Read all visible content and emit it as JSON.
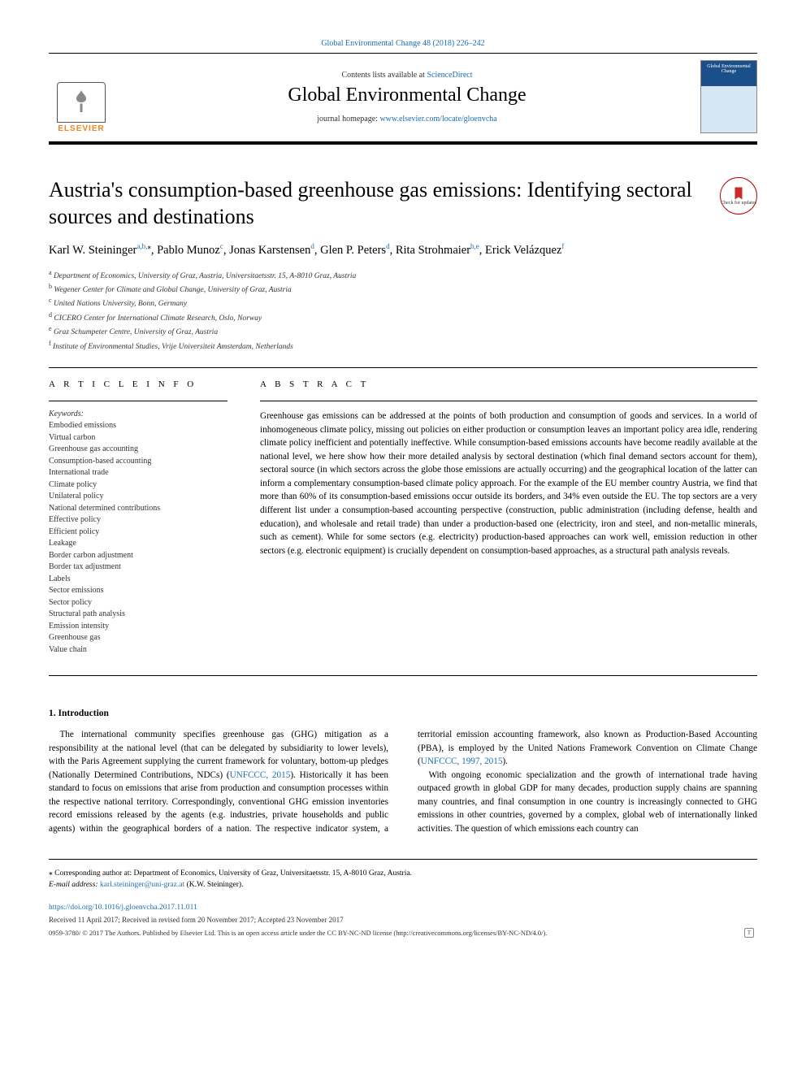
{
  "header": {
    "citation": "Global Environmental Change 48 (2018) 226–242",
    "contents_prefix": "Contents lists available at ",
    "contents_link": "ScienceDirect",
    "journal": "Global Environmental Change",
    "homepage_prefix": "journal homepage: ",
    "homepage_url": "www.elsevier.com/locate/gloenvcha",
    "elsevier_label": "ELSEVIER",
    "cover_label": "Global Environmental Change"
  },
  "title": "Austria's consumption-based greenhouse gas emissions: Identifying sectoral sources and destinations",
  "updates_badge": "Check for updates",
  "authors_html_parts": {
    "a1_name": "Karl W. Steininger",
    "a1_sup": "a,b,",
    "a1_star": "⁎",
    "a2_name": "Pablo Munoz",
    "a2_sup": "c",
    "a3_name": "Jonas Karstensen",
    "a3_sup": "d",
    "a4_name": "Glen P. Peters",
    "a4_sup": "d",
    "a5_name": "Rita Strohmaier",
    "a5_sup": "b,e",
    "a6_name": "Erick Velázquez",
    "a6_sup": "f"
  },
  "affiliations": [
    {
      "sup": "a",
      "text": "Department of Economics, University of Graz, Austria, Universitaetsstr. 15, A-8010 Graz, Austria"
    },
    {
      "sup": "b",
      "text": "Wegener Center for Climate and Global Change, University of Graz, Austria"
    },
    {
      "sup": "c",
      "text": "United Nations University, Bonn, Germany"
    },
    {
      "sup": "d",
      "text": "CICERO Center for International Climate Research, Oslo, Norway"
    },
    {
      "sup": "e",
      "text": "Graz Schumpeter Centre, University of Graz, Austria"
    },
    {
      "sup": "f",
      "text": "Institute of Environmental Studies, Vrije Universiteit Amsterdam, Netherlands"
    }
  ],
  "article_info_heading": "A R T I C L E  I N F O",
  "keywords_label": "Keywords:",
  "keywords": [
    "Embodied emissions",
    "Virtual carbon",
    "Greenhouse gas accounting",
    "Consumption-based accounting",
    "International trade",
    "Climate policy",
    "Unilateral policy",
    "National determined contributions",
    "Effective policy",
    "Efficient policy",
    "Leakage",
    "Border carbon adjustment",
    "Border tax adjustment",
    "Labels",
    "Sector emissions",
    "Sector policy",
    "Structural path analysis",
    "Emission intensity",
    "Greenhouse gas",
    "Value chain"
  ],
  "abstract_heading": "A B S T R A C T",
  "abstract": "Greenhouse gas emissions can be addressed at the points of both production and consumption of goods and services. In a world of inhomogeneous climate policy, missing out policies on either production or consumption leaves an important policy area idle, rendering climate policy inefficient and potentially ineffective. While consumption-based emissions accounts have become readily available at the national level, we here show how their more detailed analysis by sectoral destination (which final demand sectors account for them), sectoral source (in which sectors across the globe those emissions are actually occurring) and the geographical location of the latter can inform a complementary consumption-based climate policy approach. For the example of the EU member country Austria, we find that more than 60% of its consumption-based emissions occur outside its borders, and 34% even outside the EU. The top sectors are a very different list under a consumption-based accounting perspective (construction, public administration (including defense, health and education), and wholesale and retail trade) than under a production-based one (electricity, iron and steel, and non-metallic minerals, such as cement). While for some sectors (e.g. electricity) production-based approaches can work well, emission reduction in other sectors (e.g. electronic equipment) is crucially dependent on consumption-based approaches, as a structural path analysis reveals.",
  "section1": {
    "heading": "1. Introduction",
    "p1a": "The international community specifies greenhouse gas (GHG) mitigation as a responsibility at the national level (that can be delegated by subsidiarity to lower levels), with the Paris Agreement supplying the current framework for voluntary, bottom-up pledges (Nationally Determined Contributions, NDCs) (",
    "p1_ref1": "UNFCCC, 2015",
    "p1b": "). Historically it has been standard to focus on emissions that arise from production and consumption processes within the respective national territory. Correspondingly, conventional GHG emission inventories record emissions released by the agents (e.g. industries, private households and public agents) within the geographical borders of a nation. The respective indicator system, a territorial emission accounting framework, also known as Production-Based Accounting (PBA), is employed by the United Nations Framework Convention on Climate Change (",
    "p1_ref2": "UNFCCC, 1997, 2015",
    "p1c": ").",
    "p2": "With ongoing economic specialization and the growth of international trade having outpaced growth in global GDP for many decades, production supply chains are spanning many countries, and final consumption in one country is increasingly connected to GHG emissions in other countries, governed by a complex, global web of internationally linked activities. The question of which emissions each country can"
  },
  "footnotes": {
    "corr_symbol": "⁎",
    "corr_text": " Corresponding author at: Department of Economics, University of Graz, Universitaetsstr. 15, A-8010 Graz, Austria.",
    "email_label": "E-mail address: ",
    "email": "karl.steininger@uni-graz.at",
    "email_suffix": " (K.W. Steininger).",
    "doi": "https://doi.org/10.1016/j.gloenvcha.2017.11.011",
    "history": "Received 11 April 2017; Received in revised form 20 November 2017; Accepted 23 November 2017",
    "copyright": "0959-3780/ © 2017 The Authors. Published by Elsevier Ltd. This is an open access article under the CC BY-NC-ND license (http://creativecommons.org/licenses/BY-NC-ND/4.0/).",
    "t_mark": "T"
  },
  "colors": {
    "link": "#1a6fb5",
    "elsevier_orange": "#f58220",
    "rule": "#000000"
  }
}
